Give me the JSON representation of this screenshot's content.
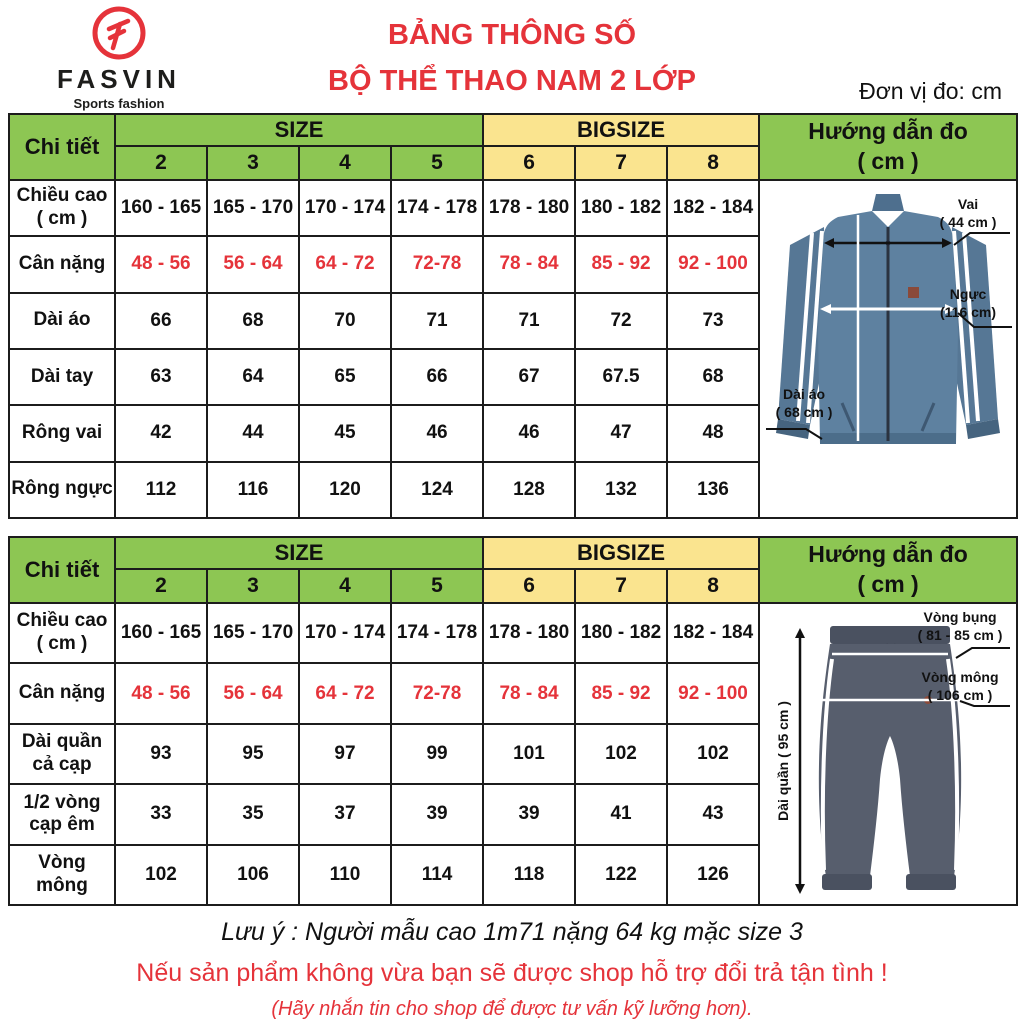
{
  "header": {
    "brand": "FASVIN",
    "tagline": "Sports fashion",
    "title_line1": "BẢNG THÔNG SỐ",
    "title_line2": "BỘ THỂ THAO NAM 2 LỚP",
    "unit_note": "Đơn vị đo: cm"
  },
  "colors": {
    "header_green": "#8dc653",
    "header_yellow": "#fae48f",
    "accent_red": "#e5333a",
    "jacket_blue": "#5e81a0",
    "pants_gray": "#575e6d"
  },
  "table_header": {
    "detail": "Chi tiết",
    "size": "SIZE",
    "bigsize": "BIGSIZE",
    "guide_line1": "Hướng dẫn đo",
    "guide_line2": "( cm )",
    "size_cols": [
      "2",
      "3",
      "4",
      "5"
    ],
    "bigsize_cols": [
      "6",
      "7",
      "8"
    ]
  },
  "jacket_table": {
    "rows": [
      {
        "label_lines": [
          "Chiều cao",
          "( cm )"
        ],
        "red": false,
        "values": [
          "160 - 165",
          "165 - 170",
          "170 - 174",
          "174 - 178",
          "178 - 180",
          "180 - 182",
          "182 - 184"
        ]
      },
      {
        "label_lines": [
          "Cân nặng"
        ],
        "red": true,
        "values": [
          "48 - 56",
          "56 - 64",
          "64 - 72",
          "72-78",
          "78 - 84",
          "85 - 92",
          "92 - 100"
        ]
      },
      {
        "label_lines": [
          "Dài áo"
        ],
        "red": false,
        "values": [
          "66",
          "68",
          "70",
          "71",
          "71",
          "72",
          "73"
        ]
      },
      {
        "label_lines": [
          "Dài tay"
        ],
        "red": false,
        "values": [
          "63",
          "64",
          "65",
          "66",
          "67",
          "67.5",
          "68"
        ]
      },
      {
        "label_lines": [
          "Rông vai"
        ],
        "red": false,
        "values": [
          "42",
          "44",
          "45",
          "46",
          "46",
          "47",
          "48"
        ]
      },
      {
        "label_lines": [
          "Rông ngực"
        ],
        "red": false,
        "values": [
          "112",
          "116",
          "120",
          "124",
          "128",
          "132",
          "136"
        ]
      }
    ],
    "annotations": [
      {
        "line1": "Vai",
        "line2": "( 44 cm )"
      },
      {
        "line1": "Ngực",
        "line2": "(116 cm)"
      },
      {
        "line1": "Dài áo",
        "line2": "( 68 cm )"
      }
    ]
  },
  "pants_table": {
    "rows": [
      {
        "label_lines": [
          "Chiều cao",
          "( cm )"
        ],
        "red": false,
        "values": [
          "160 - 165",
          "165 - 170",
          "170 - 174",
          "174 - 178",
          "178 - 180",
          "180 - 182",
          "182 - 184"
        ]
      },
      {
        "label_lines": [
          "Cân nặng"
        ],
        "red": true,
        "values": [
          "48 - 56",
          "56 - 64",
          "64 - 72",
          "72-78",
          "78 - 84",
          "85 - 92",
          "92 - 100"
        ]
      },
      {
        "label_lines": [
          "Dài quần",
          "cả cạp"
        ],
        "red": false,
        "values": [
          "93",
          "95",
          "97",
          "99",
          "101",
          "102",
          "102"
        ]
      },
      {
        "label_lines": [
          "1/2 vòng",
          "cạp êm"
        ],
        "red": false,
        "values": [
          "33",
          "35",
          "37",
          "39",
          "39",
          "41",
          "43"
        ]
      },
      {
        "label_lines": [
          "Vòng",
          "mông"
        ],
        "red": false,
        "values": [
          "102",
          "106",
          "110",
          "114",
          "118",
          "122",
          "126"
        ]
      }
    ],
    "annotations": [
      {
        "line1": "Vòng bụng",
        "line2": "( 81 - 85 cm )"
      },
      {
        "line1": "Vòng mông",
        "line2": "( 106 cm )"
      },
      {
        "line1": "Dài quần ( 95 cm )",
        "line2": ""
      }
    ]
  },
  "footer": {
    "note": "Lưu ý : Người mẫu cao 1m71 nặng 64 kg mặc size 3",
    "exchange": "Nếu sản phẩm không vừa bạn sẽ được shop hỗ trợ đổi trả tận tình !",
    "contact": "(Hãy nhắn tin cho shop để được tư vấn kỹ lưỡng hơn)."
  }
}
